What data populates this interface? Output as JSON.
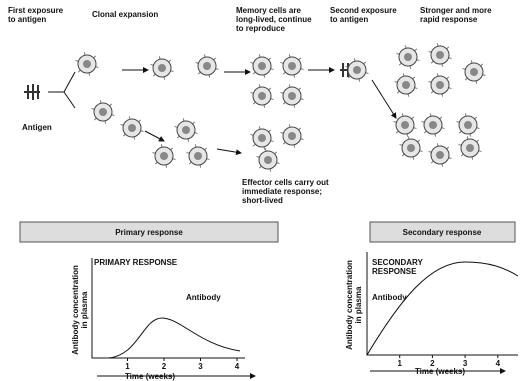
{
  "labels": {
    "first_exposure": [
      "First exposure",
      "to antigen"
    ],
    "clonal_expansion": [
      "Clonal expansion"
    ],
    "memory_cells": [
      "Memory cells are",
      "long-lived, continue",
      "to reproduce"
    ],
    "second_exposure": [
      "Second exposure",
      "to antigen"
    ],
    "stronger": [
      "Stronger and more",
      "rapid response"
    ],
    "antigen": [
      "Antigen"
    ],
    "effector": [
      "Effector cells carry out",
      "immediate response;",
      "short-lived"
    ]
  },
  "primary": {
    "header": "Primary response",
    "title": "PRIMARY RESPONSE",
    "curve_label": "Antibody",
    "y_label": [
      "Antibody concentration",
      "in plasma"
    ],
    "x_label": "Time (weeks)",
    "xticks": [
      1,
      2,
      3,
      4
    ]
  },
  "secondary": {
    "header": "Secondary response",
    "title": [
      "SECONDARY",
      "RESPONSE"
    ],
    "curve_label": "Antibody",
    "y_label": [
      "Antibody concentration",
      "in plasma"
    ],
    "x_label": "Time (weeks)",
    "xticks": [
      1,
      2,
      3,
      4
    ]
  }
}
